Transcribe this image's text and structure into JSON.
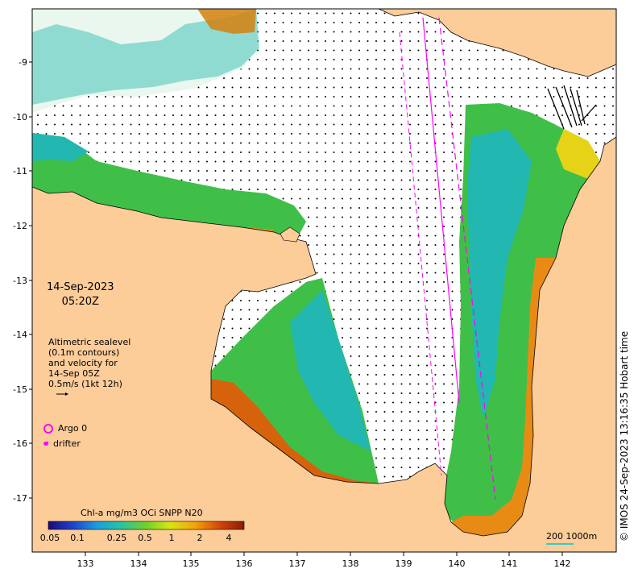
{
  "map": {
    "date_line1": "14-Sep-2023",
    "date_line2": "05:20Z",
    "altimetry_lines": [
      "Altimetric sealevel",
      "(0.1m contours)",
      "and velocity for",
      "14-Sep 05Z",
      "0.5m/s (1kt 12h)"
    ],
    "legend": {
      "argo_label": "Argo 0",
      "drifter_label": "drifter",
      "argo_color": "#ff00ff",
      "drifter_color": "#ff00ff"
    },
    "colorbar": {
      "title": "Chl-a mg/m3 OCi SNPP N20",
      "ticks": [
        "0.05",
        "0.1",
        "0.25",
        "0.5",
        "1",
        "2",
        "4"
      ],
      "colors": [
        "#1a0a7a",
        "#1e40c8",
        "#1a9ee0",
        "#27c3a0",
        "#6fd22b",
        "#d6e614",
        "#f3a20e",
        "#d44a0b",
        "#8a1a08"
      ]
    },
    "scale_bar": {
      "label": "200  1000m",
      "color": "#33cccc"
    },
    "x_ticks": [
      "133",
      "134",
      "135",
      "136",
      "137",
      "138",
      "139",
      "140",
      "141",
      "142"
    ],
    "y_ticks": [
      "-9",
      "-10",
      "-11",
      "-12",
      "-13",
      "-14",
      "-15",
      "-16",
      "-17"
    ],
    "stamp": "© IMOS 24-Sep-2023 13:16:35 Hobart time",
    "land_color": "#fccc99",
    "ocean_color": "#ffffff"
  }
}
